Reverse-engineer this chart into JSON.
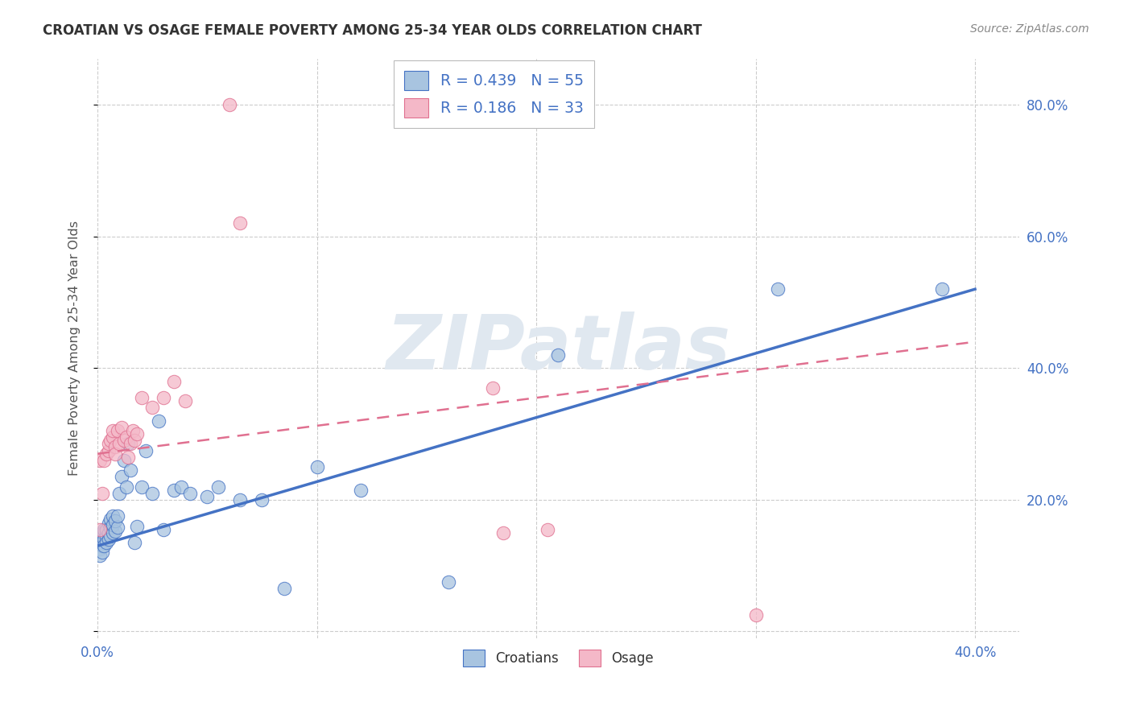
{
  "title": "CROATIAN VS OSAGE FEMALE POVERTY AMONG 25-34 YEAR OLDS CORRELATION CHART",
  "source": "Source: ZipAtlas.com",
  "ylabel": "Female Poverty Among 25-34 Year Olds",
  "xlim": [
    0.0,
    0.42
  ],
  "ylim": [
    -0.01,
    0.87
  ],
  "xticks": [
    0.0,
    0.1,
    0.2,
    0.3,
    0.4
  ],
  "yticks": [
    0.0,
    0.2,
    0.4,
    0.6,
    0.8
  ],
  "xticklabels": [
    "0.0%",
    "",
    "",
    "",
    "40.0%"
  ],
  "yticklabels_right": [
    "",
    "20.0%",
    "40.0%",
    "60.0%",
    "80.0%"
  ],
  "croatian_color": "#a8c4e0",
  "osage_color": "#f4b8c8",
  "croatian_line_color": "#4472c4",
  "osage_line_color": "#e07090",
  "tick_color": "#4472c4",
  "title_color": "#333333",
  "source_color": "#888888",
  "legend_r1_r": "0.439",
  "legend_r1_n": "55",
  "legend_r2_r": "0.186",
  "legend_r2_n": "33",
  "watermark": "ZIPatlas",
  "watermark_color": "#e0e8f0",
  "grid_color": "#cccccc",
  "background": "#ffffff",
  "figsize": [
    14.06,
    8.92
  ],
  "dpi": 100,
  "croatian_x": [
    0.001,
    0.001,
    0.001,
    0.001,
    0.002,
    0.002,
    0.002,
    0.002,
    0.003,
    0.003,
    0.003,
    0.003,
    0.004,
    0.004,
    0.004,
    0.005,
    0.005,
    0.005,
    0.006,
    0.006,
    0.006,
    0.007,
    0.007,
    0.007,
    0.008,
    0.008,
    0.009,
    0.009,
    0.01,
    0.011,
    0.012,
    0.013,
    0.014,
    0.015,
    0.017,
    0.018,
    0.02,
    0.022,
    0.025,
    0.028,
    0.03,
    0.035,
    0.038,
    0.042,
    0.05,
    0.055,
    0.065,
    0.075,
    0.085,
    0.1,
    0.12,
    0.16,
    0.21,
    0.31,
    0.385
  ],
  "croatian_y": [
    0.135,
    0.125,
    0.145,
    0.115,
    0.14,
    0.13,
    0.15,
    0.12,
    0.15,
    0.14,
    0.13,
    0.155,
    0.145,
    0.155,
    0.135,
    0.15,
    0.14,
    0.165,
    0.145,
    0.158,
    0.17,
    0.15,
    0.162,
    0.175,
    0.152,
    0.168,
    0.158,
    0.175,
    0.21,
    0.235,
    0.26,
    0.22,
    0.285,
    0.245,
    0.135,
    0.16,
    0.22,
    0.275,
    0.21,
    0.32,
    0.155,
    0.215,
    0.22,
    0.21,
    0.205,
    0.22,
    0.2,
    0.2,
    0.065,
    0.25,
    0.215,
    0.075,
    0.42,
    0.52,
    0.52
  ],
  "osage_x": [
    0.001,
    0.001,
    0.002,
    0.003,
    0.004,
    0.005,
    0.005,
    0.006,
    0.007,
    0.007,
    0.008,
    0.008,
    0.009,
    0.01,
    0.011,
    0.012,
    0.013,
    0.014,
    0.015,
    0.016,
    0.017,
    0.018,
    0.02,
    0.025,
    0.03,
    0.035,
    0.04,
    0.06,
    0.065,
    0.18,
    0.185,
    0.205,
    0.3
  ],
  "osage_y": [
    0.155,
    0.26,
    0.21,
    0.26,
    0.27,
    0.275,
    0.285,
    0.29,
    0.295,
    0.305,
    0.28,
    0.27,
    0.305,
    0.285,
    0.31,
    0.29,
    0.295,
    0.265,
    0.285,
    0.305,
    0.29,
    0.3,
    0.355,
    0.34,
    0.355,
    0.38,
    0.35,
    0.8,
    0.62,
    0.37,
    0.15,
    0.155,
    0.025
  ],
  "croatian_line": [
    0.0,
    0.4,
    0.13,
    0.52
  ],
  "osage_line": [
    0.0,
    0.4,
    0.27,
    0.44
  ]
}
